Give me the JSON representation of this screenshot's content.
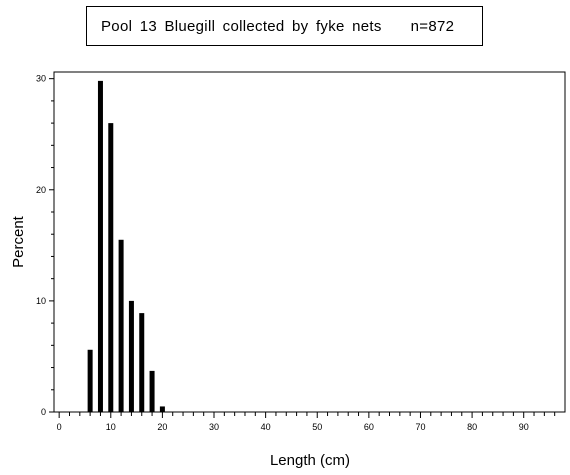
{
  "chart_data": {
    "type": "bar",
    "title": "Pool 13 Bluegill collected by fyke nets",
    "title_n": "n=872",
    "xlabel": "Length (cm)",
    "ylabel": "Percent",
    "xlim": [
      -1,
      98
    ],
    "ylim": [
      0,
      30.6
    ],
    "xticks": [
      0,
      10,
      20,
      30,
      40,
      50,
      60,
      70,
      80,
      90
    ],
    "xtick_labels": [
      "0",
      "10",
      "20",
      "30",
      "40",
      "50",
      "60",
      "70",
      "80",
      "90"
    ],
    "yticks": [
      0,
      10,
      20,
      30
    ],
    "ytick_labels": [
      "0",
      "10",
      "20",
      "30"
    ],
    "x": [
      6,
      8,
      10,
      12,
      14,
      16,
      18,
      20
    ],
    "values": [
      5.6,
      29.8,
      26.0,
      15.5,
      10.0,
      8.9,
      3.7,
      0.5
    ],
    "grid": false,
    "bar_color": "#000000"
  }
}
